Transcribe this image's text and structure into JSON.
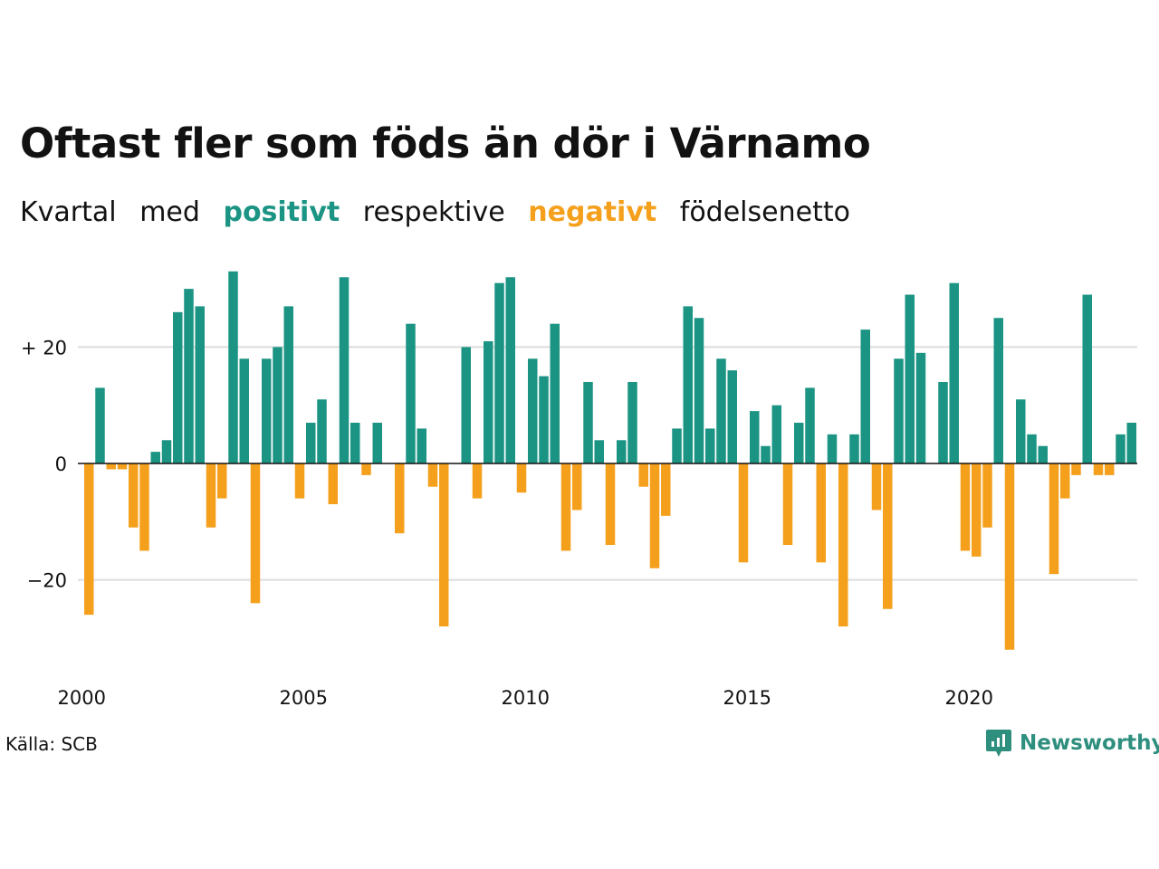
{
  "title": "Oftast fler som föds än dör i Värnamo",
  "subtitle": {
    "part1": "Kvartal",
    "part2": "med",
    "positive_word": "positivt",
    "part3": "respektive",
    "negative_word": "negativt",
    "part4": "födelsenetto"
  },
  "source": "Källa: SCB",
  "brand": {
    "name": "Newsworthy",
    "icon": "newsworthy-logo-icon"
  },
  "colors": {
    "positive": "#1b9484",
    "negative": "#f5a01c",
    "grid": "#dddddd",
    "baseline": "#121212"
  },
  "chart_data": {
    "type": "bar",
    "x_start_year": 2000,
    "x_ticks": [
      "2000",
      "2005",
      "2010",
      "2015",
      "2020"
    ],
    "y_ticks": [
      {
        "value": 20,
        "label": "+ 20"
      },
      {
        "value": 0,
        "label": "0"
      },
      {
        "value": -20,
        "label": "−20"
      }
    ],
    "ylim": [
      -34,
      35
    ],
    "grid": true,
    "values": [
      -26,
      13,
      -1,
      -1,
      -11,
      -15,
      2,
      4,
      26,
      30,
      27,
      -11,
      -6,
      33,
      18,
      -24,
      18,
      20,
      27,
      -6,
      7,
      11,
      -7,
      32,
      7,
      -2,
      7,
      0,
      -12,
      24,
      6,
      -4,
      -28,
      0,
      20,
      -6,
      21,
      31,
      32,
      -5,
      18,
      15,
      24,
      -15,
      -8,
      14,
      4,
      -14,
      4,
      14,
      -4,
      -18,
      -9,
      6,
      27,
      25,
      6,
      18,
      16,
      -17,
      9,
      3,
      10,
      -14,
      7,
      13,
      -17,
      5,
      -28,
      5,
      23,
      -8,
      -25,
      18,
      29,
      19,
      0,
      14,
      31,
      -15,
      -16,
      -11,
      25,
      -32,
      11,
      5,
      3,
      -19,
      -6,
      -2,
      29,
      -2,
      -2,
      5,
      7
    ]
  }
}
